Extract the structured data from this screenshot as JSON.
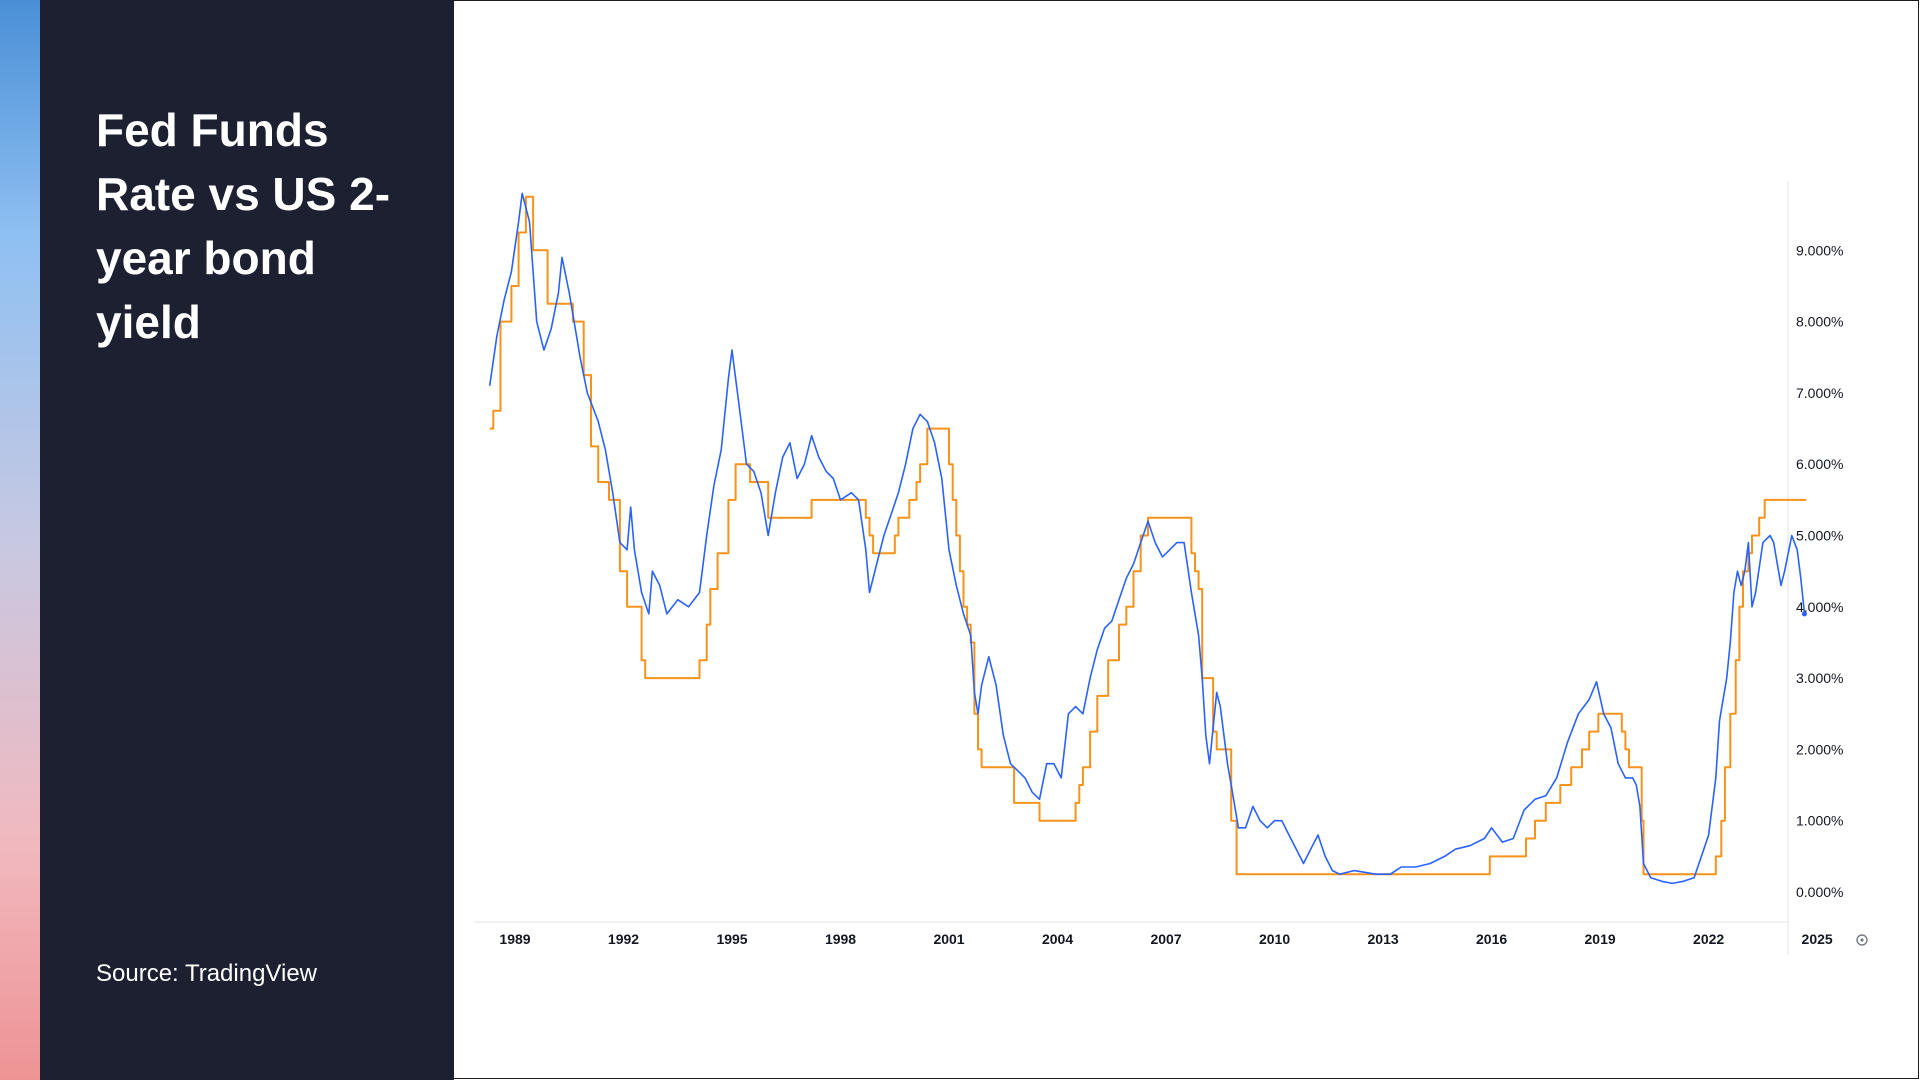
{
  "slide": {
    "title": "Fed Funds Rate vs US 2-year bond yield",
    "source": "Source: TradingView"
  },
  "colors": {
    "fed_funds": "#f7931a",
    "two_year": "#2962ff",
    "panel": "#1c2030",
    "accent_top": "#4a8fd6",
    "accent_bottom": "#ee9394"
  },
  "chart_data": {
    "type": "line",
    "xlim": [
      1988.0,
      2025.0
    ],
    "ylim": [
      0.0,
      10.0
    ],
    "x_ticks": [
      "1989",
      "1992",
      "1995",
      "1998",
      "2001",
      "2004",
      "2007",
      "2010",
      "2013",
      "2016",
      "2019",
      "2022",
      "2025"
    ],
    "y_ticks": [
      "0.000%",
      "1.000%",
      "2.000%",
      "3.000%",
      "4.000%",
      "5.000%",
      "6.000%",
      "7.000%",
      "8.000%",
      "9.000%"
    ],
    "grid": false,
    "series": [
      {
        "id": "fed-funds-rate",
        "color": "#f7931a",
        "step": true,
        "points": [
          [
            1988.3,
            6.5
          ],
          [
            1988.4,
            6.75
          ],
          [
            1988.6,
            8.0
          ],
          [
            1988.9,
            8.5
          ],
          [
            1989.1,
            9.25
          ],
          [
            1989.3,
            9.75
          ],
          [
            1989.5,
            9.0
          ],
          [
            1989.9,
            8.25
          ],
          [
            1990.6,
            8.0
          ],
          [
            1990.9,
            7.25
          ],
          [
            1991.1,
            6.25
          ],
          [
            1991.3,
            5.75
          ],
          [
            1991.6,
            5.5
          ],
          [
            1991.9,
            4.5
          ],
          [
            1992.1,
            4.0
          ],
          [
            1992.5,
            3.25
          ],
          [
            1992.6,
            3.0
          ],
          [
            1994.1,
            3.25
          ],
          [
            1994.3,
            3.75
          ],
          [
            1994.4,
            4.25
          ],
          [
            1994.6,
            4.75
          ],
          [
            1994.9,
            5.5
          ],
          [
            1995.1,
            6.0
          ],
          [
            1995.5,
            5.75
          ],
          [
            1996.0,
            5.25
          ],
          [
            1997.2,
            5.5
          ],
          [
            1998.7,
            5.25
          ],
          [
            1998.8,
            5.0
          ],
          [
            1998.9,
            4.75
          ],
          [
            1999.5,
            5.0
          ],
          [
            1999.6,
            5.25
          ],
          [
            1999.9,
            5.5
          ],
          [
            2000.1,
            5.75
          ],
          [
            2000.2,
            6.0
          ],
          [
            2000.4,
            6.5
          ],
          [
            2001.0,
            6.0
          ],
          [
            2001.1,
            5.5
          ],
          [
            2001.2,
            5.0
          ],
          [
            2001.3,
            4.5
          ],
          [
            2001.4,
            4.0
          ],
          [
            2001.5,
            3.75
          ],
          [
            2001.6,
            3.5
          ],
          [
            2001.7,
            2.5
          ],
          [
            2001.8,
            2.0
          ],
          [
            2001.9,
            1.75
          ],
          [
            2002.8,
            1.25
          ],
          [
            2003.5,
            1.0
          ],
          [
            2004.5,
            1.25
          ],
          [
            2004.6,
            1.5
          ],
          [
            2004.7,
            1.75
          ],
          [
            2004.9,
            2.25
          ],
          [
            2005.1,
            2.75
          ],
          [
            2005.4,
            3.25
          ],
          [
            2005.7,
            3.75
          ],
          [
            2005.9,
            4.0
          ],
          [
            2006.1,
            4.5
          ],
          [
            2006.3,
            5.0
          ],
          [
            2006.5,
            5.25
          ],
          [
            2007.7,
            4.75
          ],
          [
            2007.8,
            4.5
          ],
          [
            2007.9,
            4.25
          ],
          [
            2008.0,
            3.0
          ],
          [
            2008.3,
            2.25
          ],
          [
            2008.4,
            2.0
          ],
          [
            2008.8,
            1.0
          ],
          [
            2008.95,
            0.25
          ],
          [
            2015.95,
            0.5
          ],
          [
            2016.95,
            0.75
          ],
          [
            2017.2,
            1.0
          ],
          [
            2017.5,
            1.25
          ],
          [
            2017.9,
            1.5
          ],
          [
            2018.2,
            1.75
          ],
          [
            2018.5,
            2.0
          ],
          [
            2018.7,
            2.25
          ],
          [
            2018.95,
            2.5
          ],
          [
            2019.6,
            2.25
          ],
          [
            2019.7,
            2.0
          ],
          [
            2019.8,
            1.75
          ],
          [
            2020.15,
            1.0
          ],
          [
            2020.2,
            0.25
          ],
          [
            2022.2,
            0.5
          ],
          [
            2022.35,
            1.0
          ],
          [
            2022.45,
            1.75
          ],
          [
            2022.6,
            2.5
          ],
          [
            2022.75,
            3.25
          ],
          [
            2022.85,
            4.0
          ],
          [
            2022.95,
            4.5
          ],
          [
            2023.1,
            4.75
          ],
          [
            2023.2,
            5.0
          ],
          [
            2023.4,
            5.25
          ],
          [
            2023.55,
            5.5
          ],
          [
            2024.7,
            5.5
          ]
        ]
      },
      {
        "id": "us-2-year-yield",
        "color": "#2962ff",
        "step": false,
        "points": [
          [
            1988.3,
            7.1
          ],
          [
            1988.5,
            7.8
          ],
          [
            1988.7,
            8.3
          ],
          [
            1988.9,
            8.7
          ],
          [
            1989.1,
            9.4
          ],
          [
            1989.2,
            9.8
          ],
          [
            1989.4,
            9.4
          ],
          [
            1989.5,
            8.7
          ],
          [
            1989.6,
            8.0
          ],
          [
            1989.8,
            7.6
          ],
          [
            1990.0,
            7.9
          ],
          [
            1990.2,
            8.4
          ],
          [
            1990.3,
            8.9
          ],
          [
            1990.5,
            8.4
          ],
          [
            1990.7,
            7.8
          ],
          [
            1990.8,
            7.5
          ],
          [
            1991.0,
            7.0
          ],
          [
            1991.3,
            6.6
          ],
          [
            1991.5,
            6.2
          ],
          [
            1991.7,
            5.6
          ],
          [
            1991.9,
            4.9
          ],
          [
            1992.1,
            4.8
          ],
          [
            1992.2,
            5.4
          ],
          [
            1992.3,
            4.8
          ],
          [
            1992.5,
            4.2
          ],
          [
            1992.7,
            3.9
          ],
          [
            1992.8,
            4.5
          ],
          [
            1993.0,
            4.3
          ],
          [
            1993.2,
            3.9
          ],
          [
            1993.5,
            4.1
          ],
          [
            1993.8,
            4.0
          ],
          [
            1994.1,
            4.2
          ],
          [
            1994.3,
            5.0
          ],
          [
            1994.5,
            5.7
          ],
          [
            1994.7,
            6.2
          ],
          [
            1994.9,
            7.2
          ],
          [
            1995.0,
            7.6
          ],
          [
            1995.2,
            6.8
          ],
          [
            1995.4,
            6.0
          ],
          [
            1995.6,
            5.9
          ],
          [
            1995.8,
            5.6
          ],
          [
            1996.0,
            5.0
          ],
          [
            1996.2,
            5.6
          ],
          [
            1996.4,
            6.1
          ],
          [
            1996.6,
            6.3
          ],
          [
            1996.8,
            5.8
          ],
          [
            1997.0,
            6.0
          ],
          [
            1997.2,
            6.4
          ],
          [
            1997.4,
            6.1
          ],
          [
            1997.6,
            5.9
          ],
          [
            1997.8,
            5.8
          ],
          [
            1998.0,
            5.5
          ],
          [
            1998.3,
            5.6
          ],
          [
            1998.5,
            5.5
          ],
          [
            1998.7,
            4.8
          ],
          [
            1998.8,
            4.2
          ],
          [
            1999.0,
            4.6
          ],
          [
            1999.2,
            5.0
          ],
          [
            1999.4,
            5.3
          ],
          [
            1999.6,
            5.6
          ],
          [
            1999.8,
            6.0
          ],
          [
            2000.0,
            6.5
          ],
          [
            2000.2,
            6.7
          ],
          [
            2000.4,
            6.6
          ],
          [
            2000.6,
            6.3
          ],
          [
            2000.8,
            5.8
          ],
          [
            2001.0,
            4.8
          ],
          [
            2001.2,
            4.3
          ],
          [
            2001.4,
            3.9
          ],
          [
            2001.6,
            3.6
          ],
          [
            2001.7,
            2.8
          ],
          [
            2001.8,
            2.5
          ],
          [
            2001.9,
            2.9
          ],
          [
            2002.1,
            3.3
          ],
          [
            2002.3,
            2.9
          ],
          [
            2002.5,
            2.2
          ],
          [
            2002.7,
            1.8
          ],
          [
            2002.9,
            1.7
          ],
          [
            2003.1,
            1.6
          ],
          [
            2003.3,
            1.4
          ],
          [
            2003.5,
            1.3
          ],
          [
            2003.7,
            1.8
          ],
          [
            2003.9,
            1.8
          ],
          [
            2004.1,
            1.6
          ],
          [
            2004.3,
            2.5
          ],
          [
            2004.5,
            2.6
          ],
          [
            2004.7,
            2.5
          ],
          [
            2004.9,
            3.0
          ],
          [
            2005.1,
            3.4
          ],
          [
            2005.3,
            3.7
          ],
          [
            2005.5,
            3.8
          ],
          [
            2005.7,
            4.1
          ],
          [
            2005.9,
            4.4
          ],
          [
            2006.1,
            4.6
          ],
          [
            2006.3,
            4.9
          ],
          [
            2006.5,
            5.2
          ],
          [
            2006.7,
            4.9
          ],
          [
            2006.9,
            4.7
          ],
          [
            2007.1,
            4.8
          ],
          [
            2007.3,
            4.9
          ],
          [
            2007.5,
            4.9
          ],
          [
            2007.7,
            4.2
          ],
          [
            2007.9,
            3.6
          ],
          [
            2008.0,
            3.0
          ],
          [
            2008.1,
            2.2
          ],
          [
            2008.2,
            1.8
          ],
          [
            2008.3,
            2.3
          ],
          [
            2008.4,
            2.8
          ],
          [
            2008.5,
            2.6
          ],
          [
            2008.6,
            2.2
          ],
          [
            2008.7,
            1.8
          ],
          [
            2008.8,
            1.5
          ],
          [
            2009.0,
            0.9
          ],
          [
            2009.2,
            0.9
          ],
          [
            2009.4,
            1.2
          ],
          [
            2009.6,
            1.0
          ],
          [
            2009.8,
            0.9
          ],
          [
            2010.0,
            1.0
          ],
          [
            2010.2,
            1.0
          ],
          [
            2010.4,
            0.8
          ],
          [
            2010.6,
            0.6
          ],
          [
            2010.8,
            0.4
          ],
          [
            2011.0,
            0.6
          ],
          [
            2011.2,
            0.8
          ],
          [
            2011.4,
            0.5
          ],
          [
            2011.6,
            0.3
          ],
          [
            2011.8,
            0.25
          ],
          [
            2012.2,
            0.3
          ],
          [
            2012.8,
            0.25
          ],
          [
            2013.2,
            0.25
          ],
          [
            2013.5,
            0.35
          ],
          [
            2013.9,
            0.35
          ],
          [
            2014.3,
            0.4
          ],
          [
            2014.7,
            0.5
          ],
          [
            2015.0,
            0.6
          ],
          [
            2015.4,
            0.65
          ],
          [
            2015.8,
            0.75
          ],
          [
            2016.0,
            0.9
          ],
          [
            2016.3,
            0.7
          ],
          [
            2016.6,
            0.75
          ],
          [
            2016.9,
            1.15
          ],
          [
            2017.2,
            1.3
          ],
          [
            2017.5,
            1.35
          ],
          [
            2017.8,
            1.6
          ],
          [
            2018.1,
            2.1
          ],
          [
            2018.4,
            2.5
          ],
          [
            2018.7,
            2.7
          ],
          [
            2018.9,
            2.95
          ],
          [
            2019.1,
            2.5
          ],
          [
            2019.3,
            2.3
          ],
          [
            2019.5,
            1.8
          ],
          [
            2019.7,
            1.6
          ],
          [
            2019.9,
            1.6
          ],
          [
            2020.0,
            1.5
          ],
          [
            2020.1,
            1.2
          ],
          [
            2020.2,
            0.4
          ],
          [
            2020.4,
            0.2
          ],
          [
            2020.7,
            0.15
          ],
          [
            2021.0,
            0.12
          ],
          [
            2021.3,
            0.15
          ],
          [
            2021.6,
            0.2
          ],
          [
            2021.8,
            0.5
          ],
          [
            2022.0,
            0.8
          ],
          [
            2022.2,
            1.6
          ],
          [
            2022.3,
            2.4
          ],
          [
            2022.4,
            2.7
          ],
          [
            2022.5,
            3.0
          ],
          [
            2022.6,
            3.5
          ],
          [
            2022.7,
            4.2
          ],
          [
            2022.8,
            4.5
          ],
          [
            2022.9,
            4.3
          ],
          [
            2023.0,
            4.5
          ],
          [
            2023.1,
            4.9
          ],
          [
            2023.2,
            4.0
          ],
          [
            2023.3,
            4.2
          ],
          [
            2023.5,
            4.9
          ],
          [
            2023.7,
            5.0
          ],
          [
            2023.8,
            4.9
          ],
          [
            2023.9,
            4.6
          ],
          [
            2024.0,
            4.3
          ],
          [
            2024.1,
            4.5
          ],
          [
            2024.3,
            5.0
          ],
          [
            2024.45,
            4.8
          ],
          [
            2024.55,
            4.4
          ],
          [
            2024.65,
            3.9
          ]
        ]
      }
    ]
  }
}
